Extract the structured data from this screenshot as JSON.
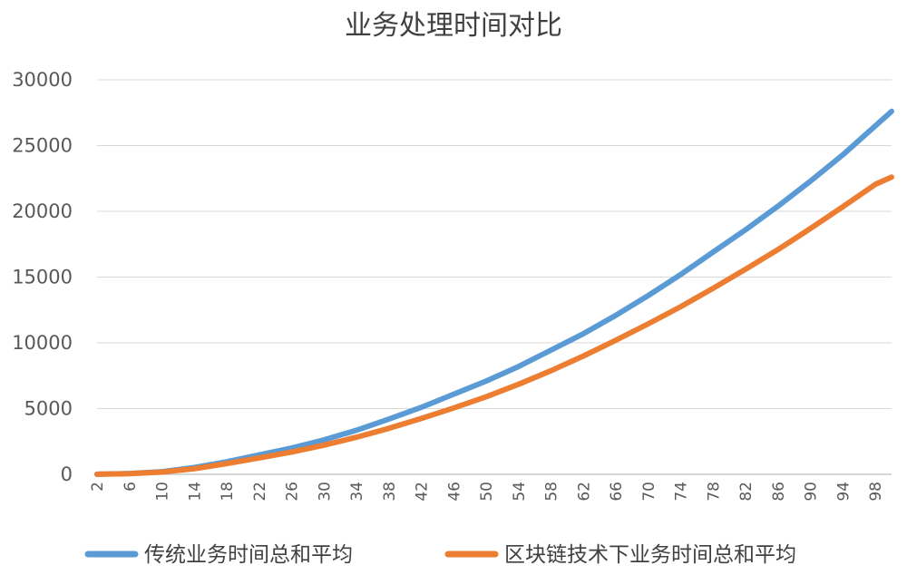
{
  "chart_data": {
    "type": "line",
    "title": "业务处理时间对比",
    "xlabel": "",
    "ylabel": "",
    "ylim": [
      0,
      30000
    ],
    "yticks": [
      0,
      5000,
      10000,
      15000,
      20000,
      25000,
      30000
    ],
    "xlim": [
      2,
      100
    ],
    "xticks": [
      2,
      6,
      10,
      14,
      18,
      22,
      26,
      30,
      34,
      38,
      42,
      46,
      50,
      54,
      58,
      62,
      66,
      70,
      74,
      78,
      82,
      86,
      90,
      94,
      98
    ],
    "grid": true,
    "legend": "bottom",
    "series": [
      {
        "name": "传统业务时间总和平均",
        "color": "#5B9BD5",
        "points": [
          [
            2,
            5
          ],
          [
            6,
            60
          ],
          [
            10,
            200
          ],
          [
            14,
            520
          ],
          [
            18,
            950
          ],
          [
            22,
            1480
          ],
          [
            26,
            2000
          ],
          [
            30,
            2620
          ],
          [
            34,
            3350
          ],
          [
            38,
            4200
          ],
          [
            42,
            5100
          ],
          [
            46,
            6100
          ],
          [
            50,
            7100
          ],
          [
            54,
            8200
          ],
          [
            58,
            9450
          ],
          [
            62,
            10700
          ],
          [
            66,
            12100
          ],
          [
            70,
            13600
          ],
          [
            74,
            15200
          ],
          [
            78,
            16900
          ],
          [
            82,
            18600
          ],
          [
            86,
            20400
          ],
          [
            90,
            22300
          ],
          [
            94,
            24300
          ],
          [
            98,
            26500
          ],
          [
            100,
            27600
          ]
        ]
      },
      {
        "name": "区块链技术下业务时间总和平均",
        "color": "#ED7D31",
        "points": [
          [
            2,
            4
          ],
          [
            6,
            50
          ],
          [
            10,
            170
          ],
          [
            14,
            430
          ],
          [
            18,
            820
          ],
          [
            22,
            1250
          ],
          [
            26,
            1700
          ],
          [
            30,
            2220
          ],
          [
            34,
            2820
          ],
          [
            38,
            3500
          ],
          [
            42,
            4250
          ],
          [
            46,
            5050
          ],
          [
            50,
            5900
          ],
          [
            54,
            6850
          ],
          [
            58,
            7880
          ],
          [
            62,
            9000
          ],
          [
            66,
            10200
          ],
          [
            70,
            11450
          ],
          [
            74,
            12750
          ],
          [
            78,
            14150
          ],
          [
            82,
            15600
          ],
          [
            86,
            17100
          ],
          [
            90,
            18700
          ],
          [
            94,
            20350
          ],
          [
            98,
            22050
          ],
          [
            100,
            22600
          ]
        ]
      }
    ]
  }
}
